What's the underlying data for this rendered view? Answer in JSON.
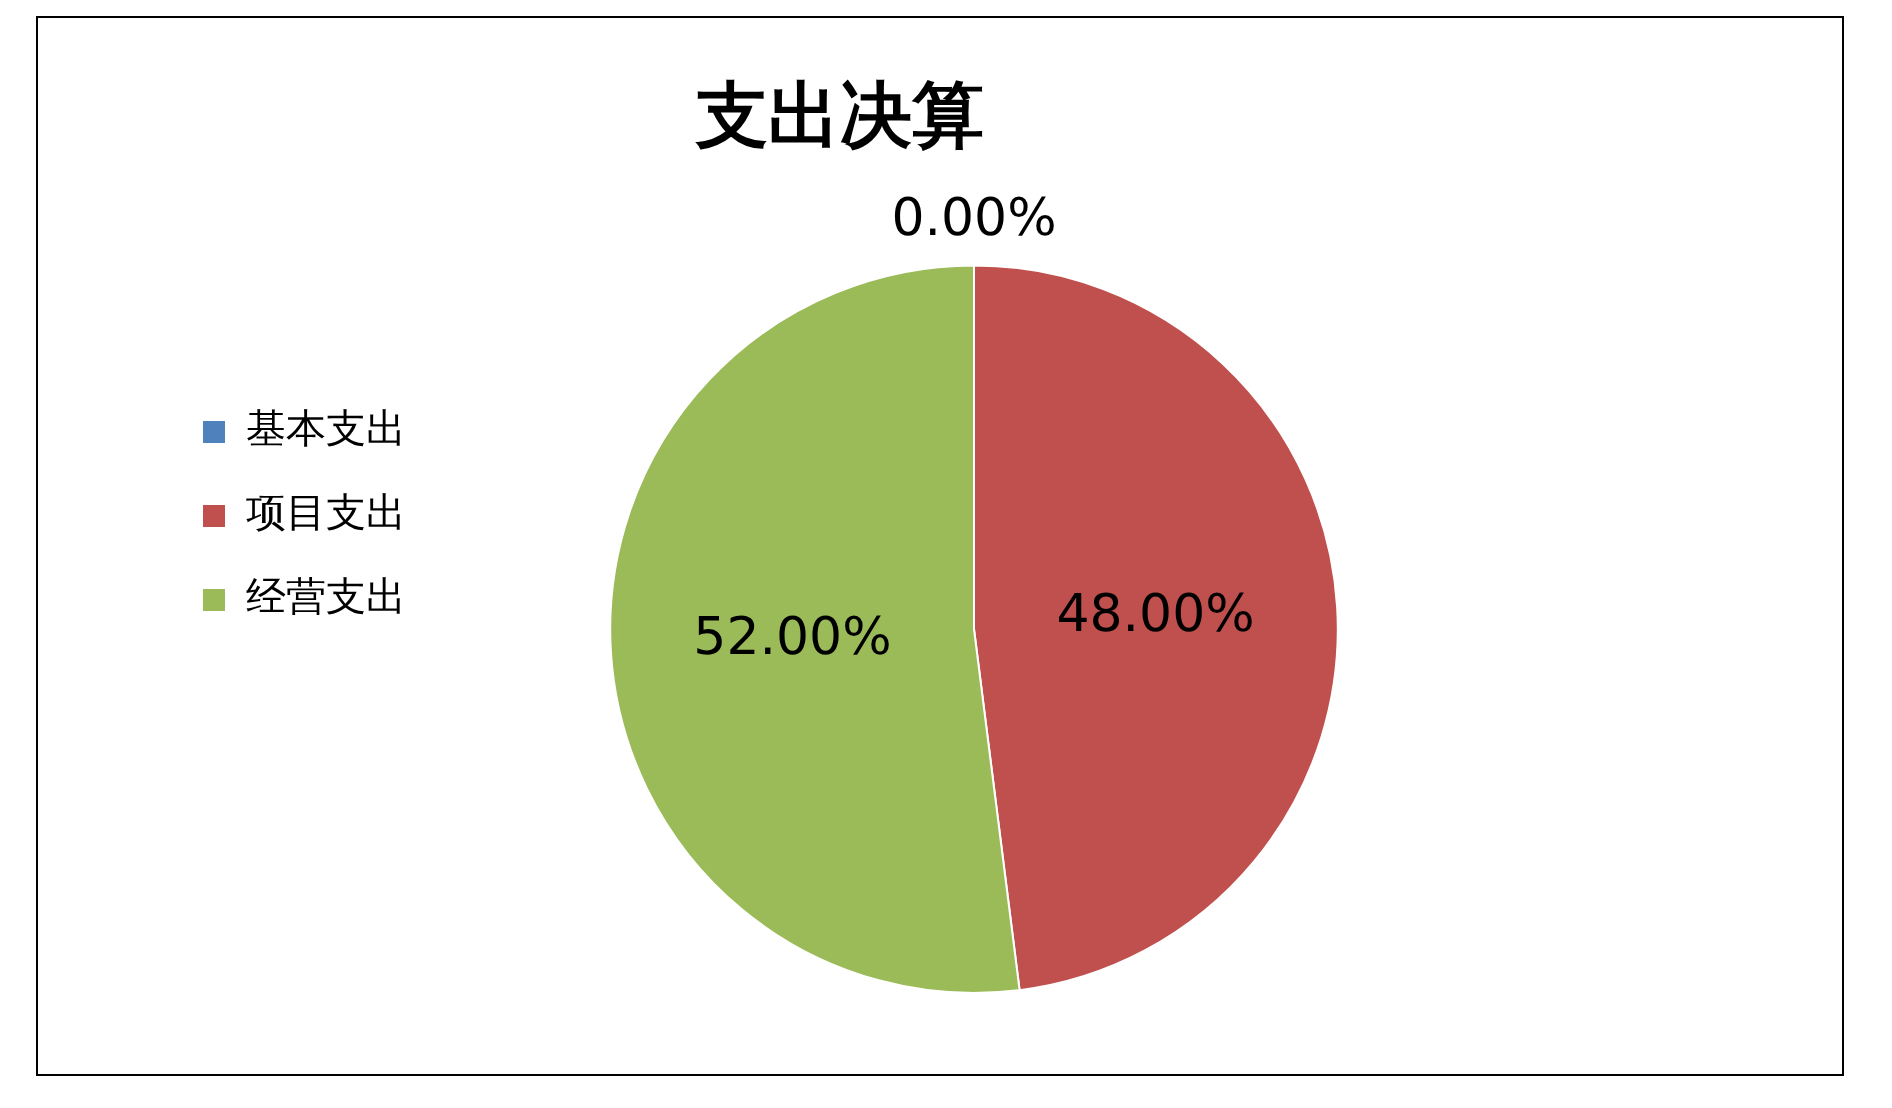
{
  "chart_data": {
    "type": "pie",
    "title": "支出决算",
    "categories": [
      "基本支出",
      "项目支出",
      "经营支出"
    ],
    "values": [
      0,
      48,
      52
    ],
    "colors": [
      "#4f81bd",
      "#c0504d",
      "#9bbb59"
    ],
    "value_labels": [
      "0.00%",
      "48.00%",
      "52.00%"
    ],
    "legend": "left"
  }
}
